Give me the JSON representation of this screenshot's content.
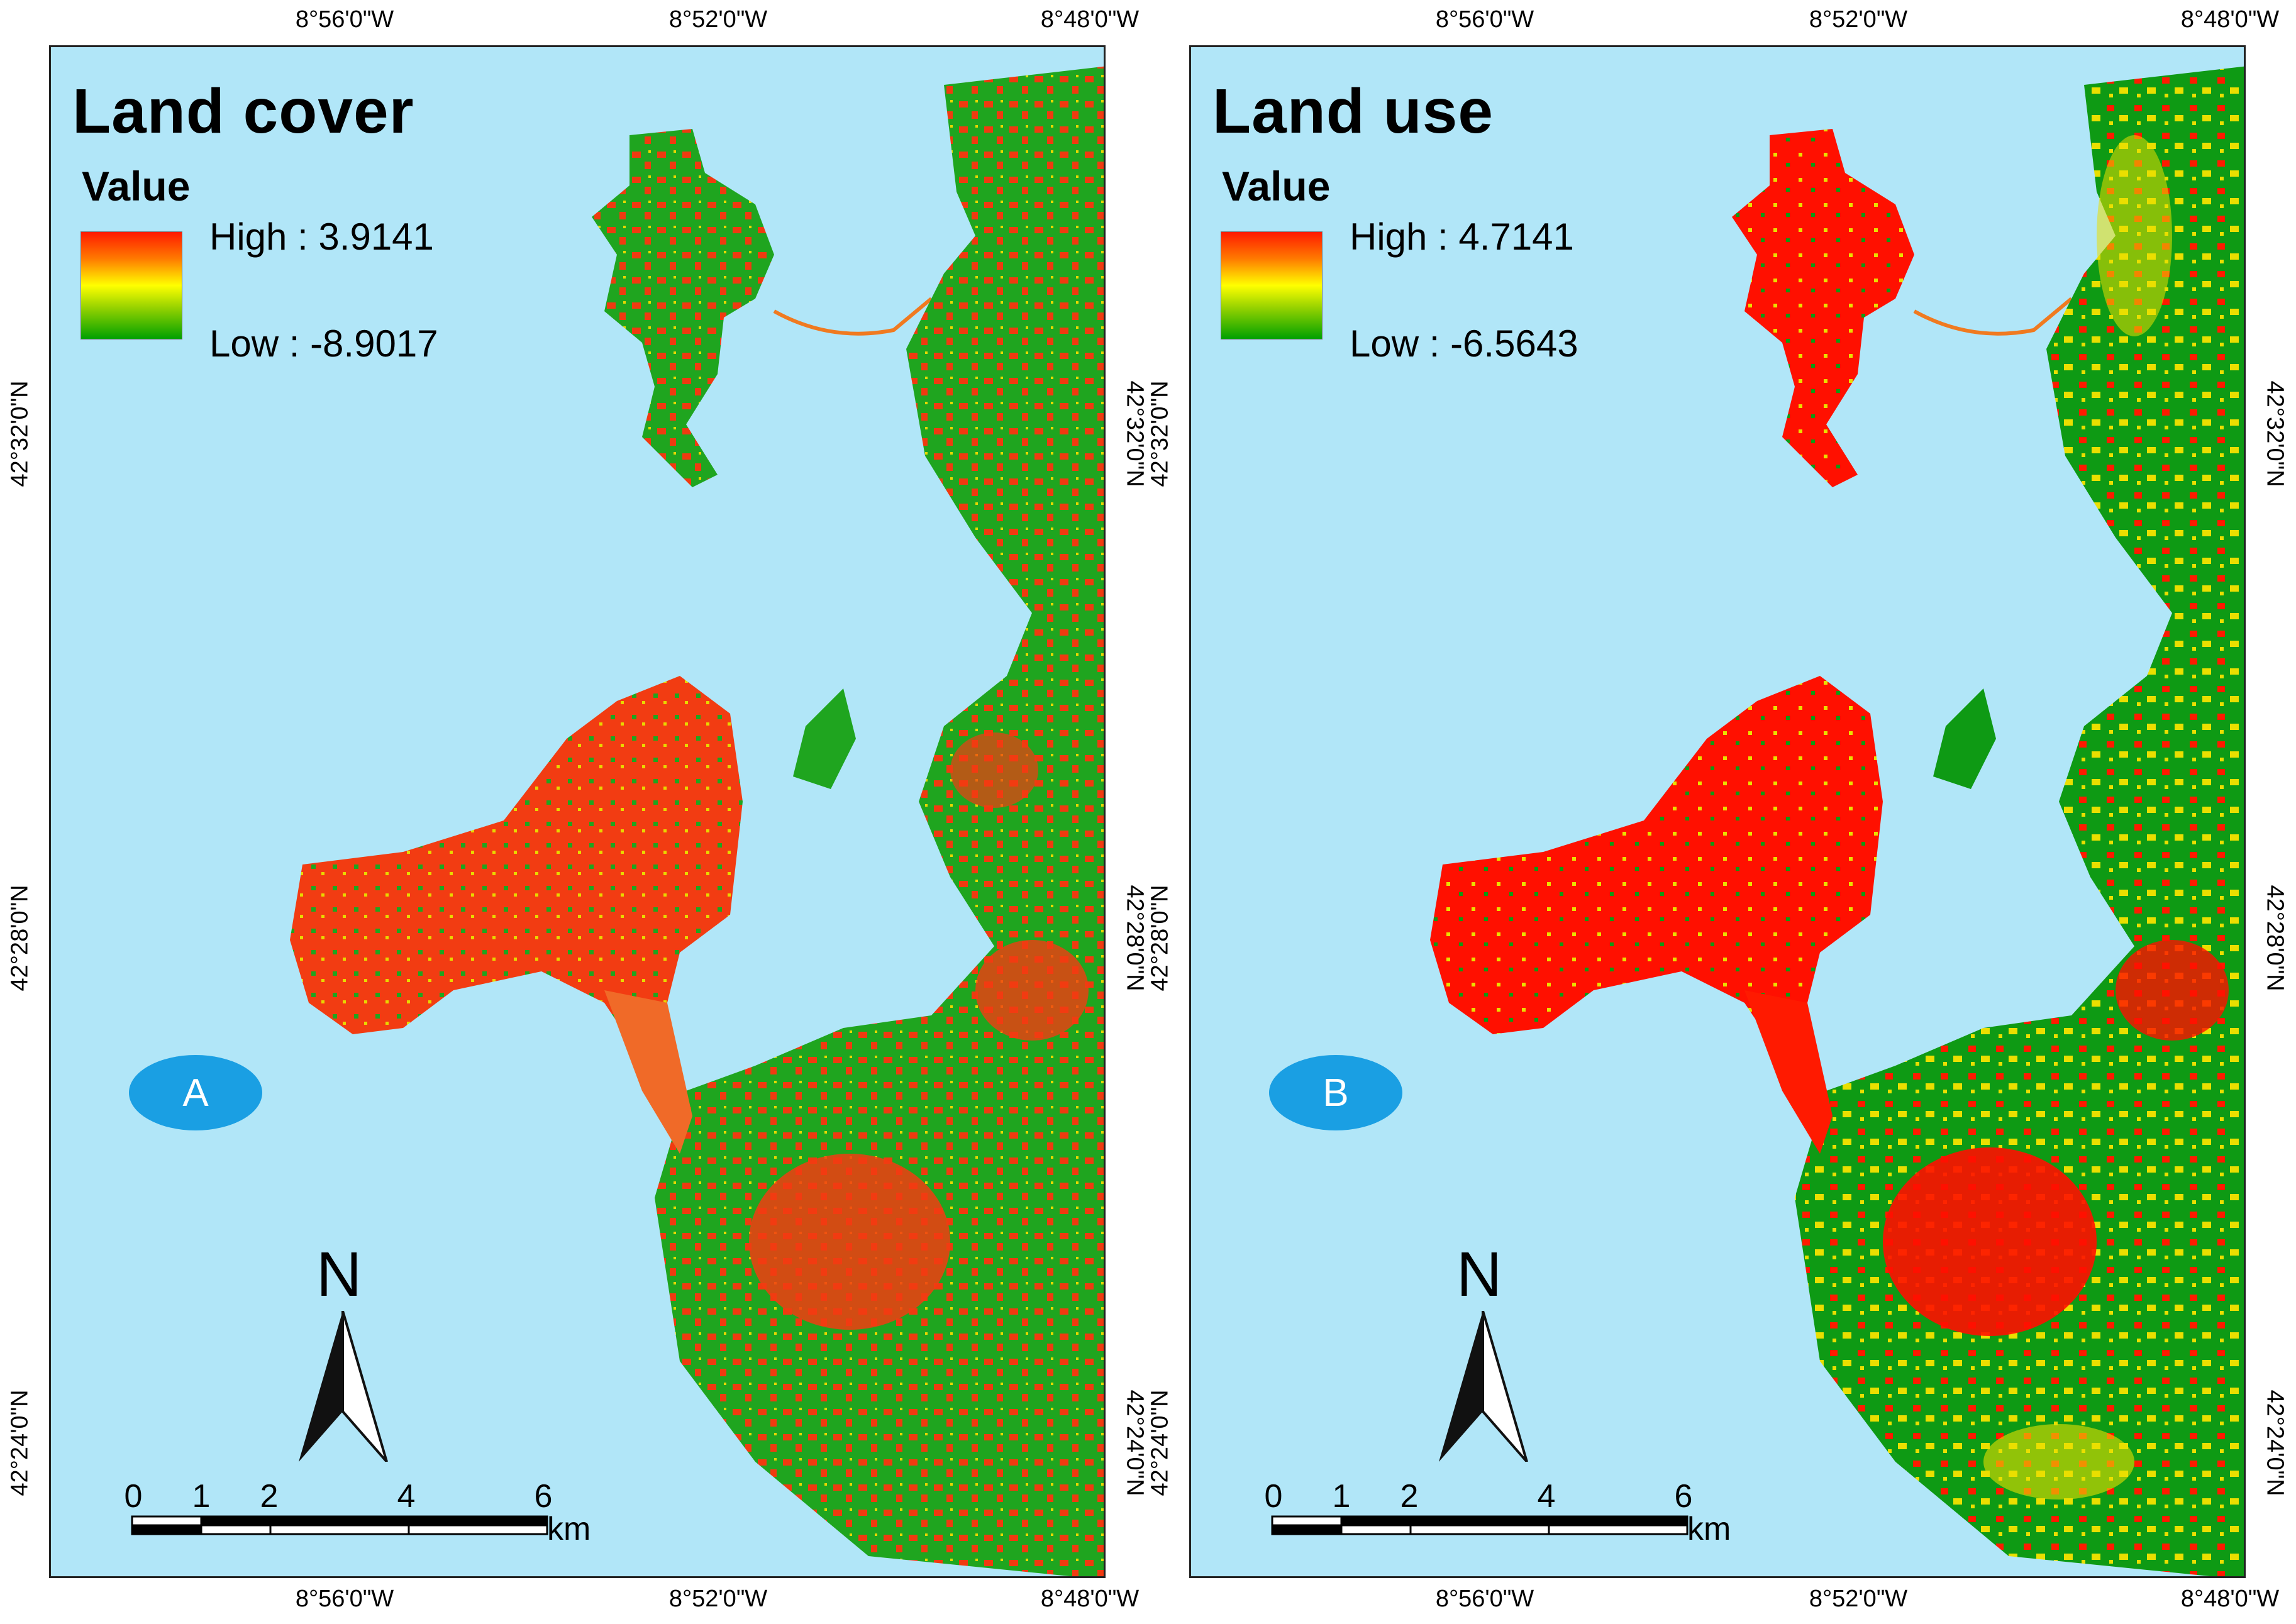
{
  "colors": {
    "water": "#b1e6f8",
    "high": "#ff1a00",
    "mid": "#ffff00",
    "low": "#00a000",
    "badge": "#1a9fe3"
  },
  "panels": [
    {
      "title": "Land cover",
      "value_label": "Value",
      "high_label": "High : 3.9141",
      "low_label": "Low : -8.9017",
      "badge": "A"
    },
    {
      "title": "Land use",
      "value_label": "Value",
      "high_label": "High : 4.7141",
      "low_label": "Low : -6.5643",
      "badge": "B"
    }
  ],
  "axes": {
    "longitude_ticks": [
      "8°56'0\"W",
      "8°52'0\"W",
      "8°48'0\"W"
    ],
    "latitude_ticks": [
      "42°32'0\"N",
      "42°28'0\"N",
      "42°24'0\"N"
    ]
  },
  "north_arrow": {
    "label": "N"
  },
  "scalebar": {
    "labels": [
      "0",
      "1",
      "2",
      "4",
      "6"
    ],
    "unit": "km"
  }
}
